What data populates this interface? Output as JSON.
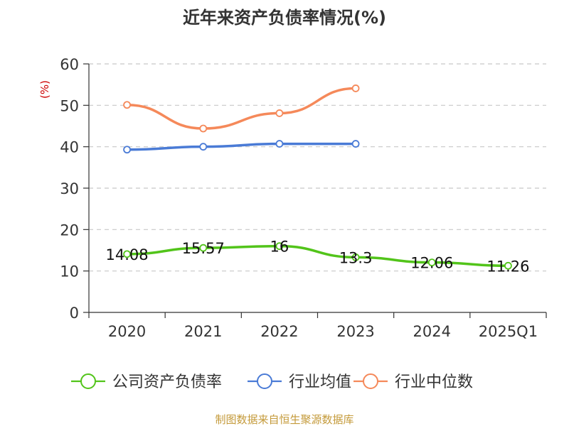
{
  "chart_data": {
    "type": "line",
    "title": "近年来资产负债率情况(%)",
    "ylabel": "(%)",
    "xlabel": "",
    "ylim": [
      0,
      60
    ],
    "yticks": [
      0,
      10,
      20,
      30,
      40,
      50,
      60
    ],
    "categories": [
      "2020",
      "2021",
      "2022",
      "2023",
      "2024",
      "2025Q1"
    ],
    "grid": true,
    "legend_position": "bottom",
    "series": [
      {
        "name": "公司资产负债率",
        "color": "#52c41a",
        "values": [
          14.08,
          15.57,
          16,
          13.3,
          12.06,
          11.26
        ],
        "labels": [
          "14.08",
          "15.57",
          "16",
          "13.3",
          "12.06",
          "11.26"
        ]
      },
      {
        "name": "行业均值",
        "color": "#4a7bd6",
        "values": [
          39.3,
          40.0,
          40.7,
          40.7,
          null,
          null
        ]
      },
      {
        "name": "行业中位数",
        "color": "#f5895a",
        "values": [
          50.1,
          44.4,
          48.1,
          54.1,
          null,
          null
        ]
      }
    ],
    "source": "制图数据来自恒生聚源数据库"
  }
}
